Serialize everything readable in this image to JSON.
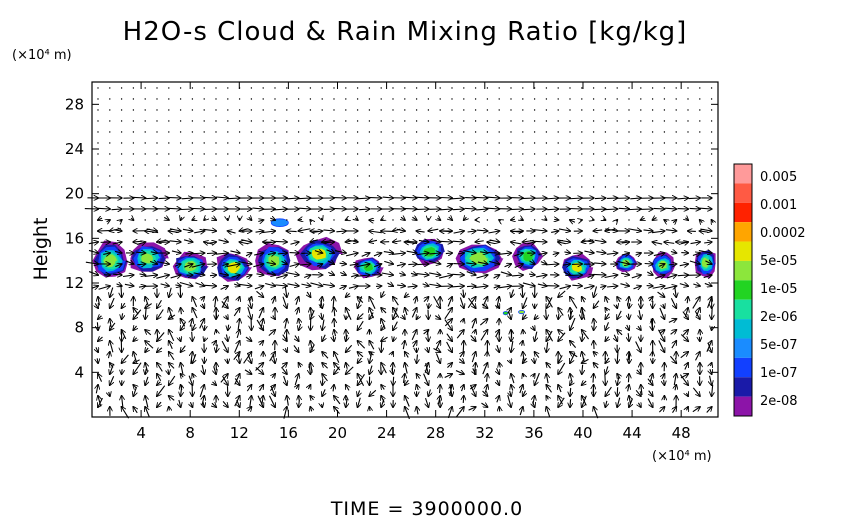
{
  "chart_data": {
    "type": "heatmap",
    "title": "H2O-s Cloud & Rain Mixing Ratio [kg/kg]",
    "ylabel": "Height",
    "x_unit": "(×10⁴ m)",
    "y_unit": "(×10⁴ m)",
    "xlim": [
      0,
      51
    ],
    "ylim": [
      0,
      30
    ],
    "x_ticks": [
      4,
      8,
      12,
      16,
      20,
      24,
      28,
      32,
      36,
      40,
      44,
      48
    ],
    "y_ticks": [
      4,
      8,
      12,
      16,
      20,
      24,
      28
    ],
    "footer": "TIME  =  3900000.0",
    "colorbar": {
      "levels": [
        "0.005",
        "0.001",
        "0.0002",
        "5e-05",
        "1e-05",
        "2e-06",
        "5e-07",
        "1e-07",
        "2e-08"
      ],
      "colors": [
        "#ff9a9a",
        "#ff5a44",
        "#ff2200",
        "#ffa500",
        "#e6e600",
        "#8ce63c",
        "#22d422",
        "#18e0a0",
        "#00bcd4",
        "#1a8cff",
        "#1240ff",
        "#1a1aa8",
        "#8c14a8"
      ]
    },
    "cloud_band": {
      "main_layer_height": [
        11.5,
        16.2
      ],
      "cloud_cells": [
        {
          "x": 1.5,
          "y": 14.0,
          "w": 3.0,
          "h": 3.5,
          "level": "1e-05"
        },
        {
          "x": 4.5,
          "y": 14.2,
          "w": 3.2,
          "h": 2.8,
          "level": "1e-05"
        },
        {
          "x": 8.0,
          "y": 13.5,
          "w": 3.0,
          "h": 2.6,
          "level": "1e-05"
        },
        {
          "x": 11.5,
          "y": 13.4,
          "w": 3.0,
          "h": 2.8,
          "level": "5e-05"
        },
        {
          "x": 14.8,
          "y": 14.0,
          "w": 3.0,
          "h": 3.2,
          "level": "1e-05"
        },
        {
          "x": 18.5,
          "y": 14.6,
          "w": 3.6,
          "h": 3.0,
          "level": "5e-05"
        },
        {
          "x": 22.5,
          "y": 13.4,
          "w": 2.4,
          "h": 2.0,
          "level": "2e-06"
        },
        {
          "x": 27.5,
          "y": 14.8,
          "w": 2.8,
          "h": 2.4,
          "level": "2e-06"
        },
        {
          "x": 31.5,
          "y": 14.2,
          "w": 4.2,
          "h": 3.0,
          "level": "1e-05"
        },
        {
          "x": 35.5,
          "y": 14.4,
          "w": 2.4,
          "h": 2.6,
          "level": "2e-06"
        },
        {
          "x": 39.5,
          "y": 13.4,
          "w": 2.6,
          "h": 2.4,
          "level": "5e-05"
        },
        {
          "x": 43.5,
          "y": 13.8,
          "w": 1.8,
          "h": 1.8,
          "level": "1e-05"
        },
        {
          "x": 46.5,
          "y": 13.6,
          "w": 2.0,
          "h": 2.2,
          "level": "1e-05"
        },
        {
          "x": 50.0,
          "y": 13.8,
          "w": 1.8,
          "h": 2.6,
          "level": "1e-05"
        }
      ],
      "isolated_cells": [
        {
          "x": 15.3,
          "y": 17.4,
          "w": 1.4,
          "h": 0.7,
          "level": "2e-08"
        },
        {
          "x": 33.7,
          "y": 9.3,
          "w": 0.4,
          "h": 0.3,
          "level": "2e-06"
        },
        {
          "x": 35.0,
          "y": 9.4,
          "w": 0.5,
          "h": 0.3,
          "level": "1e-05"
        }
      ]
    },
    "vector_field": {
      "type": "wind-arrows",
      "jets": [
        {
          "height": 19.2,
          "direction": "west",
          "strength": "strong"
        },
        {
          "height": 16.0,
          "direction": "east-west",
          "strength": "strong"
        },
        {
          "height": 13.0,
          "direction": "west",
          "strength": "strong"
        }
      ],
      "lower_region": "vertical circulation cells"
    }
  }
}
